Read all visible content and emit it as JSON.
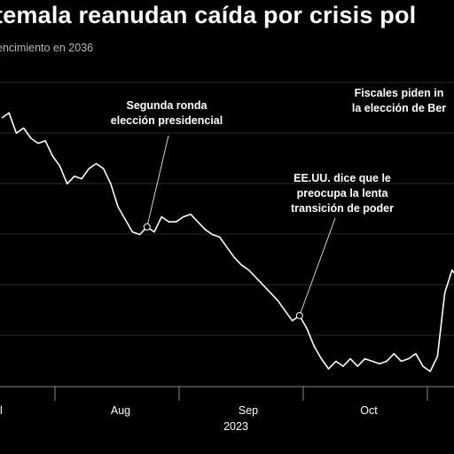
{
  "header": {
    "title": "temala reanudan caída por crisis pol",
    "subtitle": "encimiento en 2036"
  },
  "chart_data": {
    "type": "line",
    "title": "temala reanudan caída por crisis pol",
    "subtitle": "encimiento en 2036",
    "x_tick_labels": [
      "l",
      "Aug",
      "Sep",
      "Oct"
    ],
    "x_year_label": "2023",
    "grid": "horizontal",
    "line_color": "#ffffff",
    "series": [
      {
        "values": [
          98.1,
          98.3,
          97.5,
          97.7,
          97.3,
          97.1,
          97.2,
          96.6,
          96.2,
          95.5,
          95.8,
          95.7,
          96.1,
          96.3,
          96.1,
          95.5,
          94.6,
          94.1,
          93.6,
          93.5,
          93.8,
          93.6,
          94.2,
          94.0,
          94.0,
          94.2,
          94.3,
          94.0,
          93.7,
          93.5,
          93.4,
          93.0,
          92.6,
          92.3,
          92.1,
          91.8,
          91.5,
          91.2,
          90.9,
          90.5,
          90.1,
          90.3,
          89.8,
          89.1,
          88.6,
          88.2,
          88.5,
          88.3,
          88.6,
          88.3,
          88.6,
          88.5,
          88.4,
          88.5,
          88.8,
          88.5,
          88.6,
          88.8,
          88.3,
          88.1,
          88.7,
          91.2,
          92.1,
          91.7
        ]
      }
    ],
    "annotations": [
      {
        "lines": [
          "Segunda ronda",
          "elección presidencial"
        ],
        "point_index": 20
      },
      {
        "lines": [
          "EE.UU. dice que le",
          "preocupa la lenta",
          "transición de poder"
        ],
        "point_index": 41
      },
      {
        "lines": [
          "Fiscales piden in",
          "la elección de Ber"
        ],
        "point_index": 63
      }
    ]
  }
}
